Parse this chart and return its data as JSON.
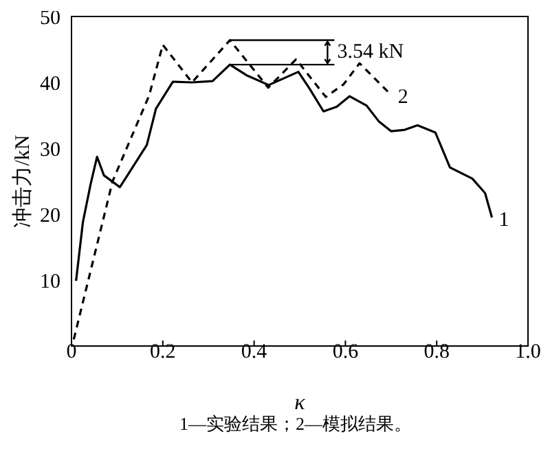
{
  "chart_data": {
    "type": "line",
    "xlabel": "κ",
    "ylabel": "冲击力/kN",
    "xlim": [
      0,
      1.0
    ],
    "xticks": [
      0,
      0.2,
      0.4,
      0.6,
      0.8,
      {
        "value": 1.0,
        "label": "1.0"
      }
    ],
    "ylim": [
      0,
      50
    ],
    "yticks": [
      10,
      20,
      30,
      40,
      50
    ],
    "grid": false,
    "legend": false,
    "marker": "none",
    "series": [
      {
        "name": "1",
        "color": "#000000",
        "line_style": "solid",
        "x": [
          0.01,
          0.025,
          0.042,
          0.056,
          0.071,
          0.106,
          0.165,
          0.185,
          0.222,
          0.264,
          0.309,
          0.347,
          0.383,
          0.432,
          0.497,
          0.522,
          0.552,
          0.581,
          0.609,
          0.646,
          0.673,
          0.7,
          0.73,
          0.758,
          0.797,
          0.829,
          0.878,
          0.906,
          0.921
        ],
        "values": [
          9.9,
          18.8,
          24.6,
          28.7,
          25.9,
          24.1,
          30.5,
          36,
          40.1,
          40,
          40.2,
          42.7,
          41.1,
          39.6,
          41.6,
          39,
          35.6,
          36.3,
          37.9,
          36.5,
          34.1,
          32.6,
          32.8,
          33.5,
          32.4,
          27.1,
          25.4,
          23.2,
          19.5
        ]
      },
      {
        "name": "2",
        "color": "#000000",
        "line_style": "dashed",
        "x": [
          0.005,
          0.09,
          0.17,
          0.2,
          0.264,
          0.347,
          0.431,
          0.492,
          0.557,
          0.596,
          0.631,
          0.7
        ],
        "values": [
          1,
          25,
          38,
          45.7,
          40,
          46.4,
          39.2,
          43.5,
          37.8,
          39.7,
          42.9,
          38.1
        ]
      }
    ],
    "annotations": [
      {
        "text": "3.54 kN",
        "x": 0.347,
        "y": 46.4
      },
      "1—实验结果；2—模拟结果。"
    ]
  }
}
